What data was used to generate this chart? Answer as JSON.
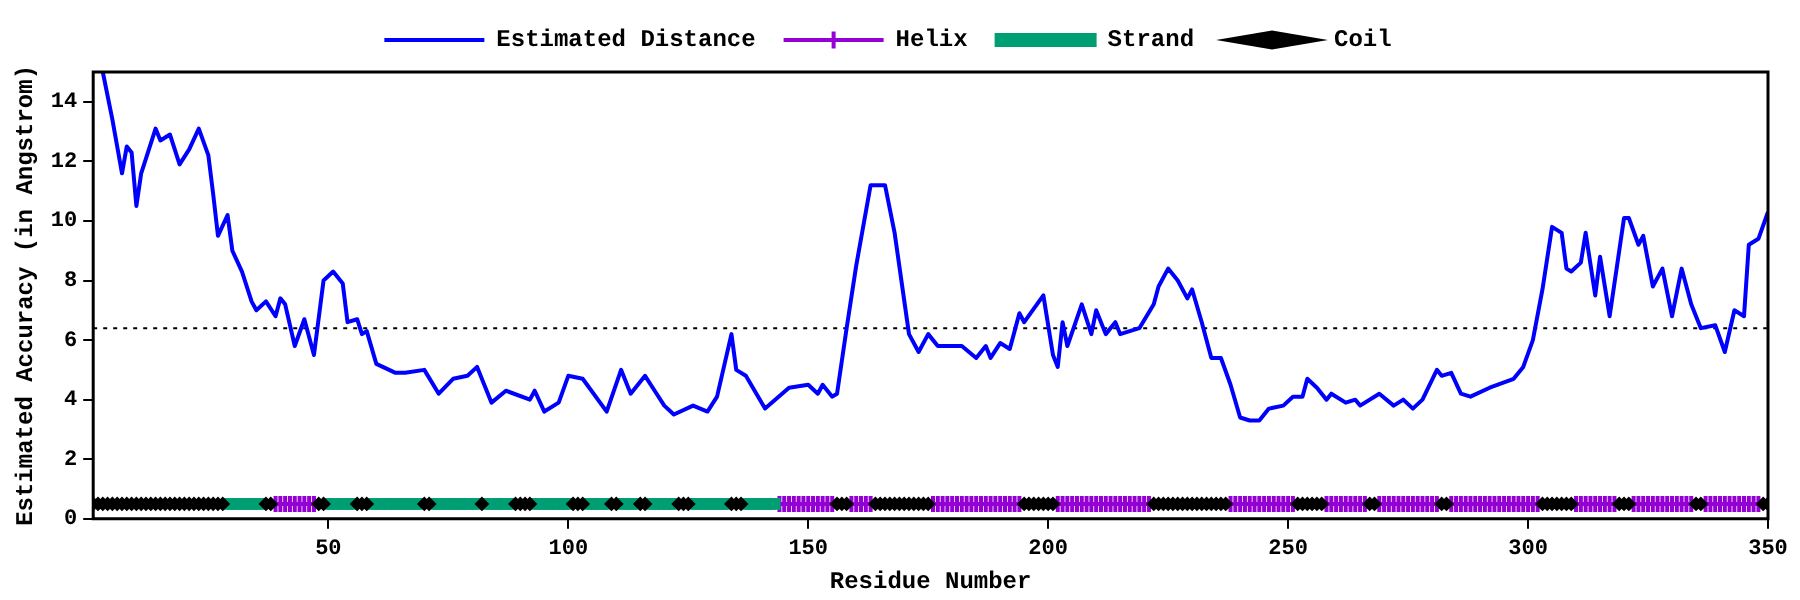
{
  "chart_data": {
    "type": "line",
    "xlabel": "Residue Number",
    "ylabel": "Estimated Accuracy (in Angstrom)",
    "xlim": [
      1,
      350
    ],
    "xticks": [
      50,
      100,
      150,
      200,
      250,
      300,
      350
    ],
    "ylim": [
      0,
      15
    ],
    "yticks": [
      0,
      2,
      4,
      6,
      8,
      10,
      12,
      14
    ],
    "grid": false,
    "legend": "top",
    "line_style": "solid",
    "ref_lines": [
      {
        "axis": "y",
        "value": 6.4,
        "color": "#000000",
        "line_style": "dotted"
      }
    ],
    "series": [
      {
        "name": "Estimated Distance",
        "marker": "none",
        "color": "#0000ff",
        "x": [
          3,
          5,
          7,
          8,
          9,
          10,
          11,
          14,
          15,
          17,
          19,
          21,
          23,
          25,
          26,
          27,
          29,
          30,
          32,
          34,
          35,
          37,
          39,
          40,
          41,
          43,
          45,
          47,
          49,
          51,
          53,
          54,
          56,
          57,
          58,
          60,
          64,
          66,
          70,
          73,
          76,
          79,
          81,
          84,
          87,
          92,
          93,
          95,
          98,
          100,
          103,
          108,
          111,
          113,
          116,
          118,
          120,
          122,
          126,
          129,
          131,
          134,
          135,
          137,
          141,
          146,
          150,
          152,
          153,
          155,
          156,
          158,
          160,
          163,
          166,
          168,
          171,
          173,
          175,
          177,
          182,
          185,
          187,
          188,
          190,
          192,
          194,
          195,
          199,
          201,
          202,
          203,
          204,
          207,
          209,
          210,
          212,
          214,
          215,
          219,
          222,
          223,
          225,
          227,
          229,
          230,
          232,
          234,
          236,
          238,
          240,
          242,
          244,
          246,
          249,
          251,
          253,
          254,
          256,
          258,
          259,
          262,
          264,
          265,
          269,
          272,
          274,
          276,
          278,
          281,
          282,
          284,
          286,
          288,
          292,
          297,
          299,
          301,
          303,
          305,
          307,
          308,
          309,
          311,
          312,
          314,
          315,
          317,
          320,
          321,
          323,
          324,
          326,
          328,
          330,
          332,
          334,
          336,
          339,
          341,
          343,
          345,
          346,
          348,
          350
        ],
        "values": [
          15.0,
          13.4,
          11.6,
          12.5,
          12.3,
          10.5,
          11.6,
          13.1,
          12.7,
          12.9,
          11.9,
          12.4,
          13.1,
          12.2,
          10.9,
          9.5,
          10.2,
          9.0,
          8.3,
          7.3,
          7.0,
          7.3,
          6.8,
          7.4,
          7.2,
          5.8,
          6.7,
          5.5,
          8.0,
          8.3,
          7.9,
          6.6,
          6.7,
          6.2,
          6.3,
          5.2,
          4.9,
          4.9,
          5.0,
          4.2,
          4.7,
          4.8,
          5.1,
          3.9,
          4.3,
          4.0,
          4.3,
          3.6,
          3.9,
          4.8,
          4.7,
          3.6,
          5.0,
          4.2,
          4.8,
          4.3,
          3.8,
          3.5,
          3.8,
          3.6,
          4.1,
          6.2,
          5.0,
          4.8,
          3.7,
          4.4,
          4.5,
          4.2,
          4.5,
          4.1,
          4.2,
          6.4,
          8.5,
          11.2,
          11.2,
          9.6,
          6.2,
          5.6,
          6.2,
          5.8,
          5.8,
          5.4,
          5.8,
          5.4,
          5.9,
          5.7,
          6.9,
          6.6,
          7.5,
          5.5,
          5.1,
          6.6,
          5.8,
          7.2,
          6.2,
          7.0,
          6.2,
          6.6,
          6.2,
          6.4,
          7.2,
          7.8,
          8.4,
          8.0,
          7.4,
          7.7,
          6.6,
          5.4,
          5.4,
          4.5,
          3.4,
          3.3,
          3.3,
          3.7,
          3.8,
          4.1,
          4.1,
          4.7,
          4.4,
          4.0,
          4.2,
          3.9,
          4.0,
          3.8,
          4.2,
          3.8,
          4.0,
          3.7,
          4.0,
          5.0,
          4.8,
          4.9,
          4.2,
          4.1,
          4.4,
          4.7,
          5.1,
          6.0,
          7.7,
          9.8,
          9.6,
          8.4,
          8.3,
          8.6,
          9.6,
          7.5,
          8.8,
          6.8,
          10.1,
          10.1,
          9.2,
          9.5,
          7.8,
          8.4,
          6.8,
          8.4,
          7.2,
          6.4,
          6.5,
          5.6,
          7.0,
          6.8,
          9.2,
          9.4,
          10.3
        ]
      },
      {
        "name": "Helix",
        "type": "scatter",
        "marker": "cross",
        "color": "#9400d3",
        "x": [
          39,
          40,
          41,
          42,
          43,
          44,
          45,
          46,
          47,
          144,
          145,
          146,
          147,
          148,
          149,
          150,
          151,
          152,
          153,
          154,
          155,
          159,
          160,
          161,
          162,
          163,
          176,
          177,
          178,
          179,
          180,
          181,
          182,
          183,
          184,
          185,
          186,
          187,
          188,
          189,
          190,
          191,
          192,
          193,
          194,
          202,
          203,
          204,
          205,
          206,
          207,
          208,
          209,
          210,
          211,
          212,
          213,
          214,
          215,
          216,
          217,
          218,
          219,
          220,
          221,
          238,
          239,
          240,
          241,
          242,
          243,
          244,
          245,
          246,
          247,
          248,
          249,
          250,
          251,
          258,
          259,
          260,
          261,
          262,
          263,
          264,
          265,
          266,
          269,
          270,
          271,
          272,
          273,
          274,
          275,
          276,
          277,
          278,
          279,
          280,
          281,
          284,
          285,
          286,
          287,
          288,
          289,
          290,
          291,
          292,
          293,
          294,
          295,
          296,
          297,
          298,
          299,
          300,
          301,
          302,
          310,
          311,
          312,
          313,
          314,
          315,
          316,
          317,
          318,
          322,
          323,
          324,
          325,
          326,
          327,
          328,
          329,
          330,
          331,
          332,
          333,
          334,
          337,
          338,
          339,
          340,
          341,
          342,
          343,
          344,
          345,
          346,
          347,
          348
        ],
        "values": [
          0.5,
          0.5,
          0.5,
          0.5,
          0.5,
          0.5,
          0.5,
          0.5,
          0.5,
          0.5,
          0.5,
          0.5,
          0.5,
          0.5,
          0.5,
          0.5,
          0.5,
          0.5,
          0.5,
          0.5,
          0.5,
          0.5,
          0.5,
          0.5,
          0.5,
          0.5,
          0.5,
          0.5,
          0.5,
          0.5,
          0.5,
          0.5,
          0.5,
          0.5,
          0.5,
          0.5,
          0.5,
          0.5,
          0.5,
          0.5,
          0.5,
          0.5,
          0.5,
          0.5,
          0.5,
          0.5,
          0.5,
          0.5,
          0.5,
          0.5,
          0.5,
          0.5,
          0.5,
          0.5,
          0.5,
          0.5,
          0.5,
          0.5,
          0.5,
          0.5,
          0.5,
          0.5,
          0.5,
          0.5,
          0.5,
          0.5,
          0.5,
          0.5,
          0.5,
          0.5,
          0.5,
          0.5,
          0.5,
          0.5,
          0.5,
          0.5,
          0.5,
          0.5,
          0.5,
          0.5,
          0.5,
          0.5,
          0.5,
          0.5,
          0.5,
          0.5,
          0.5,
          0.5,
          0.5,
          0.5,
          0.5,
          0.5,
          0.5,
          0.5,
          0.5,
          0.5,
          0.5,
          0.5,
          0.5,
          0.5,
          0.5,
          0.5,
          0.5,
          0.5,
          0.5,
          0.5,
          0.5,
          0.5,
          0.5,
          0.5,
          0.5,
          0.5,
          0.5,
          0.5,
          0.5,
          0.5,
          0.5,
          0.5,
          0.5,
          0.5,
          0.5,
          0.5,
          0.5,
          0.5,
          0.5,
          0.5,
          0.5,
          0.5,
          0.5,
          0.5,
          0.5,
          0.5,
          0.5,
          0.5,
          0.5,
          0.5,
          0.5,
          0.5,
          0.5,
          0.5,
          0.5,
          0.5,
          0.5,
          0.5,
          0.5,
          0.5,
          0.5,
          0.5,
          0.5,
          0.5,
          0.5,
          0.5,
          0.5,
          0.5
        ]
      },
      {
        "name": "Strand",
        "type": "scatter",
        "marker": "square",
        "color": "#009e73",
        "x": [
          29,
          30,
          31,
          32,
          33,
          34,
          35,
          36,
          50,
          51,
          52,
          53,
          54,
          55,
          59,
          60,
          61,
          62,
          63,
          64,
          65,
          66,
          67,
          68,
          69,
          72,
          73,
          74,
          75,
          76,
          77,
          78,
          79,
          80,
          81,
          83,
          84,
          85,
          86,
          87,
          88,
          93,
          94,
          95,
          96,
          97,
          98,
          99,
          100,
          104,
          105,
          106,
          107,
          108,
          111,
          112,
          113,
          114,
          117,
          118,
          119,
          120,
          121,
          122,
          126,
          127,
          128,
          129,
          130,
          131,
          132,
          133,
          137,
          138,
          139,
          140,
          141,
          142,
          143
        ],
        "values": [
          0.5,
          0.5,
          0.5,
          0.5,
          0.5,
          0.5,
          0.5,
          0.5,
          0.5,
          0.5,
          0.5,
          0.5,
          0.5,
          0.5,
          0.5,
          0.5,
          0.5,
          0.5,
          0.5,
          0.5,
          0.5,
          0.5,
          0.5,
          0.5,
          0.5,
          0.5,
          0.5,
          0.5,
          0.5,
          0.5,
          0.5,
          0.5,
          0.5,
          0.5,
          0.5,
          0.5,
          0.5,
          0.5,
          0.5,
          0.5,
          0.5,
          0.5,
          0.5,
          0.5,
          0.5,
          0.5,
          0.5,
          0.5,
          0.5,
          0.5,
          0.5,
          0.5,
          0.5,
          0.5,
          0.5,
          0.5,
          0.5,
          0.5,
          0.5,
          0.5,
          0.5,
          0.5,
          0.5,
          0.5,
          0.5,
          0.5,
          0.5,
          0.5,
          0.5,
          0.5,
          0.5,
          0.5,
          0.5,
          0.5,
          0.5,
          0.5,
          0.5,
          0.5,
          0.5
        ]
      },
      {
        "name": "Coil",
        "type": "scatter",
        "marker": "diamond",
        "color": "#000000",
        "x": [
          1,
          2,
          3,
          4,
          5,
          6,
          7,
          8,
          9,
          10,
          11,
          12,
          13,
          14,
          15,
          16,
          17,
          18,
          19,
          20,
          21,
          22,
          23,
          24,
          25,
          26,
          27,
          28,
          37,
          38,
          48,
          49,
          56,
          57,
          58,
          70,
          71,
          82,
          89,
          90,
          91,
          92,
          101,
          102,
          103,
          109,
          110,
          115,
          116,
          123,
          124,
          125,
          134,
          135,
          136,
          156,
          157,
          158,
          164,
          165,
          166,
          167,
          168,
          169,
          170,
          171,
          172,
          173,
          174,
          175,
          195,
          196,
          197,
          198,
          199,
          200,
          201,
          222,
          223,
          224,
          225,
          226,
          227,
          228,
          229,
          230,
          231,
          232,
          233,
          234,
          235,
          236,
          237,
          252,
          253,
          254,
          255,
          256,
          257,
          267,
          268,
          282,
          283,
          303,
          304,
          305,
          306,
          307,
          308,
          309,
          319,
          320,
          321,
          335,
          336,
          349,
          350
        ],
        "values": [
          0.5,
          0.5,
          0.5,
          0.5,
          0.5,
          0.5,
          0.5,
          0.5,
          0.5,
          0.5,
          0.5,
          0.5,
          0.5,
          0.5,
          0.5,
          0.5,
          0.5,
          0.5,
          0.5,
          0.5,
          0.5,
          0.5,
          0.5,
          0.5,
          0.5,
          0.5,
          0.5,
          0.5,
          0.5,
          0.5,
          0.5,
          0.5,
          0.5,
          0.5,
          0.5,
          0.5,
          0.5,
          0.5,
          0.5,
          0.5,
          0.5,
          0.5,
          0.5,
          0.5,
          0.5,
          0.5,
          0.5,
          0.5,
          0.5,
          0.5,
          0.5,
          0.5,
          0.5,
          0.5,
          0.5,
          0.5,
          0.5,
          0.5,
          0.5,
          0.5,
          0.5,
          0.5,
          0.5,
          0.5,
          0.5,
          0.5,
          0.5,
          0.5,
          0.5,
          0.5,
          0.5,
          0.5,
          0.5,
          0.5,
          0.5,
          0.5,
          0.5,
          0.5,
          0.5,
          0.5,
          0.5,
          0.5,
          0.5,
          0.5,
          0.5,
          0.5,
          0.5,
          0.5,
          0.5,
          0.5,
          0.5,
          0.5,
          0.5,
          0.5,
          0.5,
          0.5,
          0.5,
          0.5,
          0.5,
          0.5,
          0.5,
          0.5,
          0.5,
          0.5,
          0.5,
          0.5,
          0.5,
          0.5,
          0.5,
          0.5,
          0.5,
          0.5,
          0.5,
          0.5,
          0.5,
          0.5,
          0.5
        ]
      }
    ]
  }
}
